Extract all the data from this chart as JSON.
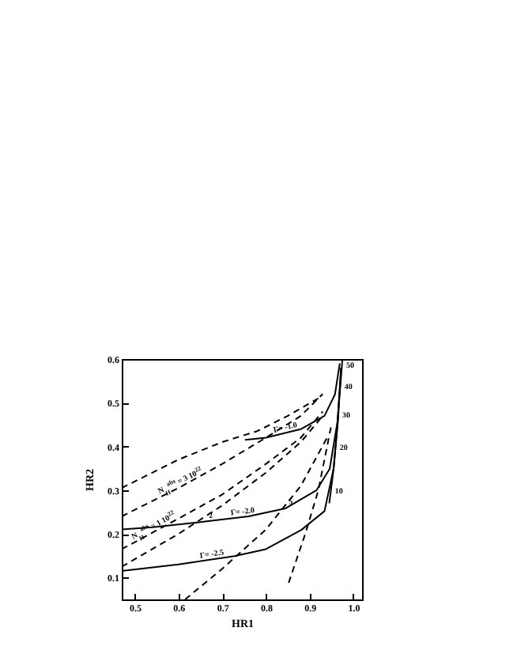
{
  "chart_data": {
    "type": "line",
    "xlabel": "HR1",
    "ylabel": "HR2",
    "xlim": [
      0.47,
      1.02
    ],
    "ylim": [
      0.05,
      0.6
    ],
    "xticks": [
      0.5,
      0.6,
      0.7,
      0.8,
      0.9,
      {
        "value": 1,
        "label": "1.0"
      }
    ],
    "yticks": [
      0.1,
      0.2,
      0.3,
      0.4,
      0.5,
      0.6
    ],
    "grid": false,
    "series": [
      {
        "color": "#000000",
        "line_style": "solid",
        "x": [
          0.47,
          0.6,
          0.728,
          0.8,
          0.881,
          0.934,
          0.955,
          0.965,
          0.972
        ],
        "values": [
          0.115,
          0.13,
          0.149,
          0.165,
          0.209,
          0.252,
          0.35,
          0.46,
          0.58
        ]
      },
      {
        "color": "#000000",
        "line_style": "solid",
        "x": [
          0.47,
          0.54,
          0.66,
          0.76,
          0.844,
          0.916,
          0.946,
          0.964,
          0.972
        ],
        "values": [
          0.21,
          0.215,
          0.228,
          0.24,
          0.258,
          0.3,
          0.349,
          0.458,
          0.58
        ]
      },
      {
        "color": "#000000",
        "line_style": "solid",
        "x": [
          0.752,
          0.8,
          0.881,
          0.934,
          0.958,
          0.969
        ],
        "values": [
          0.415,
          0.42,
          0.44,
          0.47,
          0.519,
          0.59
        ]
      },
      {
        "color": "#000000",
        "line_style": "solid",
        "x": [
          0.945,
          0.955,
          0.962,
          0.967,
          0.972,
          0.975
        ],
        "values": [
          0.27,
          0.35,
          0.43,
          0.5,
          0.56,
          0.6
        ]
      },
      {
        "color": "#000000",
        "line_style": "dashed",
        "x": [
          0.47,
          0.6,
          0.7,
          0.78,
          0.85,
          0.92
        ],
        "values": [
          0.305,
          0.37,
          0.41,
          0.435,
          0.47,
          0.51
        ]
      },
      {
        "color": "#000000",
        "line_style": "dashed",
        "x": [
          0.47,
          0.6,
          0.7,
          0.8,
          0.88,
          0.93
        ],
        "values": [
          0.24,
          0.305,
          0.36,
          0.42,
          0.47,
          0.52
        ]
      },
      {
        "color": "#000000",
        "line_style": "dashed",
        "x": [
          0.47,
          0.6,
          0.7,
          0.8,
          0.88,
          0.93
        ],
        "values": [
          0.165,
          0.235,
          0.29,
          0.36,
          0.42,
          0.48
        ]
      },
      {
        "color": "#000000",
        "line_style": "dashed",
        "x": [
          0.47,
          0.6,
          0.7,
          0.8,
          0.88,
          0.93
        ],
        "values": [
          0.125,
          0.2,
          0.265,
          0.34,
          0.41,
          0.47
        ]
      },
      {
        "color": "#000000",
        "line_style": "dashed",
        "x": [
          0.615,
          0.7,
          0.8,
          0.88,
          0.94
        ],
        "values": [
          0.05,
          0.12,
          0.21,
          0.31,
          0.42
        ]
      },
      {
        "color": "#000000",
        "line_style": "dashed",
        "x": [
          0.852,
          0.89,
          0.92,
          0.95
        ],
        "values": [
          0.088,
          0.2,
          0.3,
          0.45
        ]
      }
    ],
    "annotations": [
      {
        "text": "Γ= -1.0",
        "x": 0.81,
        "y": 0.422
      },
      {
        "text": "Γ= -2.0",
        "x": 0.71,
        "y": 0.234
      },
      {
        "text": "Γ= -2.5",
        "x": 0.64,
        "y": 0.136
      },
      {
        "text": "N$_{H}$$^{abs}$ = 3 10$^{22}$",
        "x": 0.55,
        "y": 0.28
      },
      {
        "text": "N$_{H}$$^{abs}$ = 1 10$^{22}$",
        "x": 0.49,
        "y": 0.176
      },
      {
        "text": "2",
        "x": 0.66,
        "y": 0.228
      },
      {
        "text": "5",
        "x": 0.844,
        "y": 0.258
      },
      {
        "text": "10",
        "x": 0.947,
        "y": 0.286
      },
      {
        "text": "20",
        "x": 0.958,
        "y": 0.384
      },
      {
        "text": "30",
        "x": 0.964,
        "y": 0.458
      },
      {
        "text": "40",
        "x": 0.969,
        "y": 0.524
      },
      {
        "text": "50",
        "x": 0.973,
        "y": 0.573
      }
    ]
  }
}
